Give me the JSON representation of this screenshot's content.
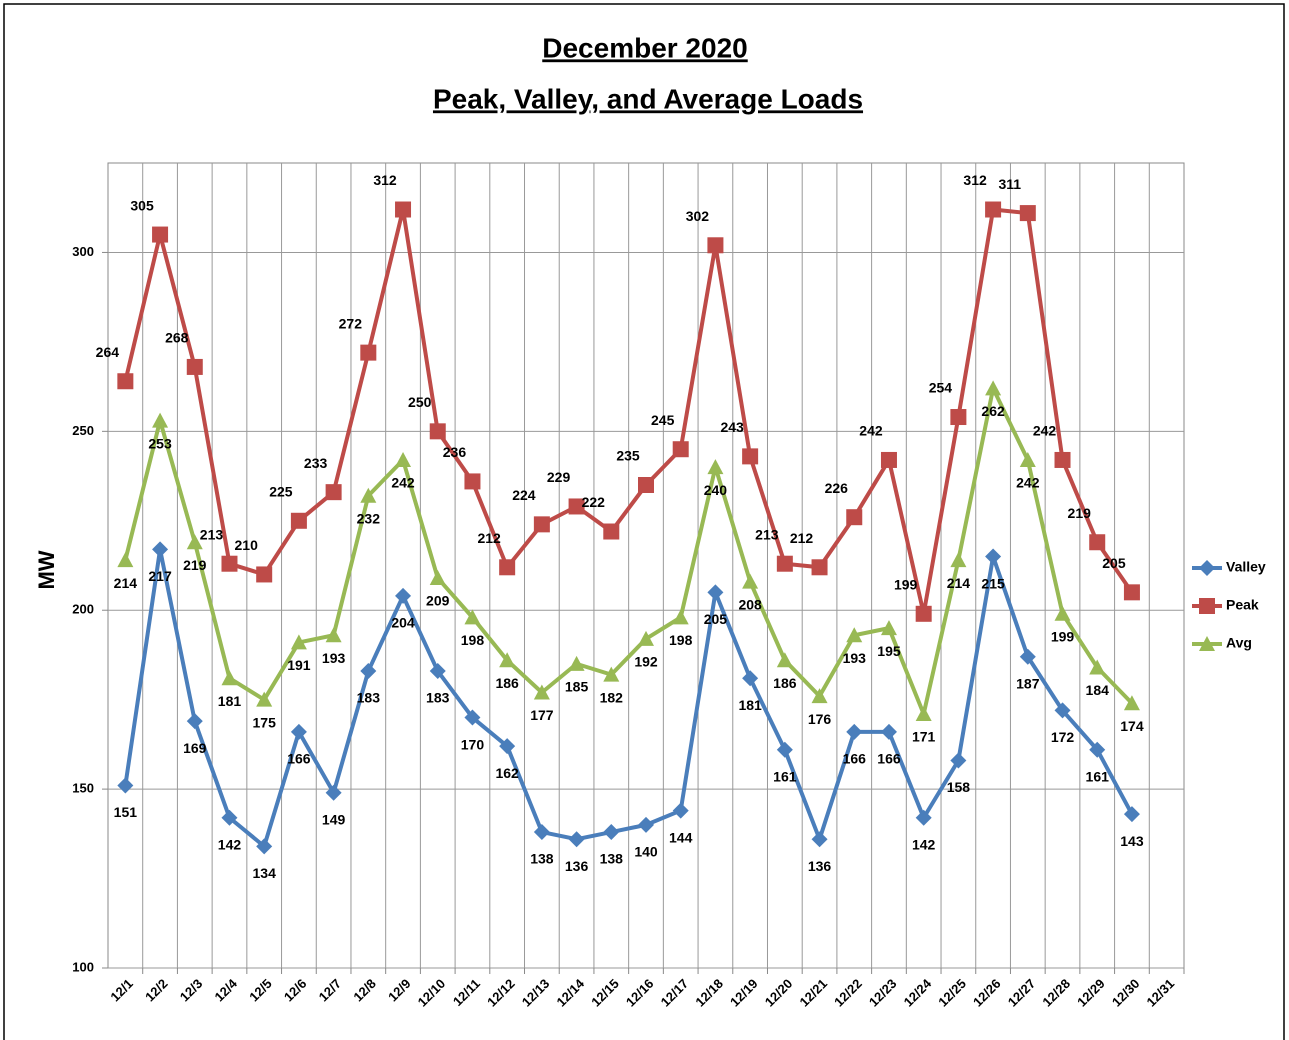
{
  "chart_data": {
    "type": "line",
    "title": "December 2020",
    "subtitle": "Peak, Valley, and Average Loads",
    "y_label": "MW",
    "categories": [
      "12/1",
      "12/2",
      "12/3",
      "12/4",
      "12/5",
      "12/6",
      "12/7",
      "12/8",
      "12/9",
      "12/10",
      "12/11",
      "12/12",
      "12/13",
      "12/14",
      "12/15",
      "12/16",
      "12/17",
      "12/18",
      "12/19",
      "12/20",
      "12/21",
      "12/22",
      "12/23",
      "12/24",
      "12/25",
      "12/26",
      "12/27",
      "12/28",
      "12/29",
      "12/30",
      "12/31"
    ],
    "series": [
      {
        "name": "Valley",
        "color": "#4a7ebb",
        "marker": "diamond",
        "values": [
          151,
          217,
          169,
          142,
          134,
          166,
          149,
          183,
          204,
          183,
          170,
          162,
          138,
          136,
          138,
          140,
          144,
          205,
          181,
          161,
          136,
          166,
          166,
          142,
          158,
          215,
          187,
          172,
          161,
          143,
          null
        ]
      },
      {
        "name": "Peak",
        "color": "#be4b48",
        "marker": "square",
        "values": [
          264,
          305,
          268,
          213,
          210,
          225,
          233,
          272,
          312,
          250,
          236,
          212,
          224,
          229,
          222,
          235,
          245,
          302,
          243,
          213,
          212,
          226,
          242,
          199,
          254,
          312,
          311,
          242,
          219,
          205,
          null
        ]
      },
      {
        "name": "Avg",
        "color": "#98b954",
        "marker": "triangle",
        "values": [
          214,
          253,
          219,
          181,
          175,
          191,
          193,
          232,
          242,
          209,
          198,
          186,
          177,
          185,
          182,
          192,
          198,
          240,
          208,
          186,
          176,
          193,
          195,
          171,
          214,
          262,
          242,
          199,
          184,
          174,
          null
        ]
      }
    ],
    "ylim": [
      100,
      325
    ],
    "yticks": [
      100,
      150,
      200,
      250,
      300
    ],
    "grid": true,
    "legend": "right"
  }
}
